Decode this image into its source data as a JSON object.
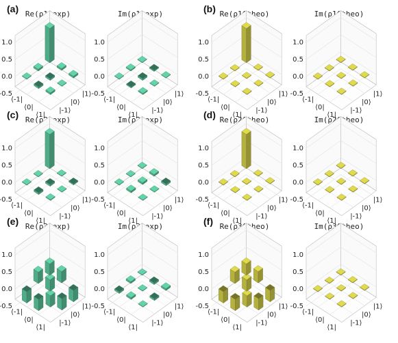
{
  "figure": {
    "colors": {
      "experimental": "#5ec9a0",
      "theoretical": "#d4d04a"
    },
    "z_ticks": [
      "1.0",
      "0.5",
      "0.0",
      "-0.5"
    ],
    "x_ticks": [
      "⟨-1|",
      "⟨0|",
      "⟨1|"
    ],
    "y_ticks": [
      "|1⟩",
      "|0⟩",
      "|-1⟩"
    ]
  },
  "chart_data": [
    {
      "type": "bar3d",
      "panel_label": "(a)",
      "title": "Re(ρ1^exp)",
      "kind": "experimental",
      "zlim": [
        -0.5,
        1.0
      ],
      "values": [
        [
          1.0,
          0.05,
          0.05
        ],
        [
          0.05,
          -0.05,
          0.0
        ],
        [
          0.0,
          -0.05,
          0.05
        ]
      ]
    },
    {
      "type": "bar3d",
      "panel_label": "",
      "title": "Im(ρ1^exp)",
      "kind": "experimental",
      "zlim": [
        -0.5,
        1.0
      ],
      "values": [
        [
          0.0,
          -0.03,
          0.0
        ],
        [
          0.03,
          -0.05,
          0.0
        ],
        [
          0.0,
          -0.03,
          0.03
        ]
      ]
    },
    {
      "type": "bar3d",
      "panel_label": "(b)",
      "title": "Re(ρ1^theo)",
      "kind": "theoretical",
      "zlim": [
        -0.5,
        1.0
      ],
      "values": [
        [
          1.0,
          0.0,
          0.0
        ],
        [
          0.0,
          0.0,
          0.0
        ],
        [
          0.0,
          0.0,
          0.0
        ]
      ]
    },
    {
      "type": "bar3d",
      "panel_label": "",
      "title": "Im(ρ1^theo)",
      "kind": "theoretical",
      "zlim": [
        -0.5,
        1.0
      ],
      "values": [
        [
          0.0,
          0.0,
          0.0
        ],
        [
          0.0,
          0.0,
          0.0
        ],
        [
          0.0,
          0.0,
          0.0
        ]
      ]
    },
    {
      "type": "bar3d",
      "panel_label": "(c)",
      "title": "Re(ρ2^exp)",
      "kind": "experimental",
      "zlim": [
        -0.5,
        1.0
      ],
      "values": [
        [
          1.0,
          0.0,
          -0.03
        ],
        [
          0.0,
          -0.05,
          0.0
        ],
        [
          0.0,
          -0.05,
          0.02
        ]
      ]
    },
    {
      "type": "bar3d",
      "panel_label": "",
      "title": "Im(ρ2^exp)",
      "kind": "experimental",
      "zlim": [
        -0.5,
        1.0
      ],
      "values": [
        [
          0.0,
          0.05,
          -0.05
        ],
        [
          0.0,
          0.05,
          0.0
        ],
        [
          0.0,
          0.05,
          0.0
        ]
      ]
    },
    {
      "type": "bar3d",
      "panel_label": "(d)",
      "title": "Re(ρ2^theo)",
      "kind": "theoretical",
      "zlim": [
        -0.5,
        1.0
      ],
      "values": [
        [
          1.0,
          0.0,
          0.0
        ],
        [
          0.0,
          0.0,
          0.0
        ],
        [
          0.0,
          0.0,
          0.0
        ]
      ]
    },
    {
      "type": "bar3d",
      "panel_label": "",
      "title": "Im(ρ2^theo)",
      "kind": "theoretical",
      "zlim": [
        -0.5,
        1.0
      ],
      "values": [
        [
          0.0,
          0.0,
          0.0
        ],
        [
          0.0,
          0.0,
          0.0
        ],
        [
          0.0,
          0.0,
          0.0
        ]
      ]
    },
    {
      "type": "bar3d",
      "panel_label": "(e)",
      "title": "Re(ρ3^exp)",
      "kind": "experimental",
      "zlim": [
        -0.5,
        1.0
      ],
      "values": [
        [
          0.33,
          0.33,
          -0.33
        ],
        [
          0.33,
          0.33,
          -0.33
        ],
        [
          -0.33,
          -0.33,
          0.33
        ]
      ]
    },
    {
      "type": "bar3d",
      "panel_label": "",
      "title": "Im(ρ3^exp)",
      "kind": "experimental",
      "zlim": [
        -0.5,
        1.0
      ],
      "values": [
        [
          0.0,
          -0.05,
          0.05
        ],
        [
          0.05,
          0.0,
          -0.05
        ],
        [
          -0.05,
          0.05,
          0.0
        ]
      ]
    },
    {
      "type": "bar3d",
      "panel_label": "(f)",
      "title": "Re(ρ3^theo)",
      "kind": "theoretical",
      "zlim": [
        -0.5,
        1.0
      ],
      "values": [
        [
          0.33,
          0.33,
          -0.33
        ],
        [
          0.33,
          0.33,
          -0.33
        ],
        [
          -0.33,
          -0.33,
          0.33
        ]
      ]
    },
    {
      "type": "bar3d",
      "panel_label": "",
      "title": "Im(ρ3^theo)",
      "kind": "theoretical",
      "zlim": [
        -0.5,
        1.0
      ],
      "values": [
        [
          0.0,
          0.0,
          0.0
        ],
        [
          0.0,
          0.0,
          0.0
        ],
        [
          0.0,
          0.0,
          0.0
        ]
      ]
    }
  ]
}
